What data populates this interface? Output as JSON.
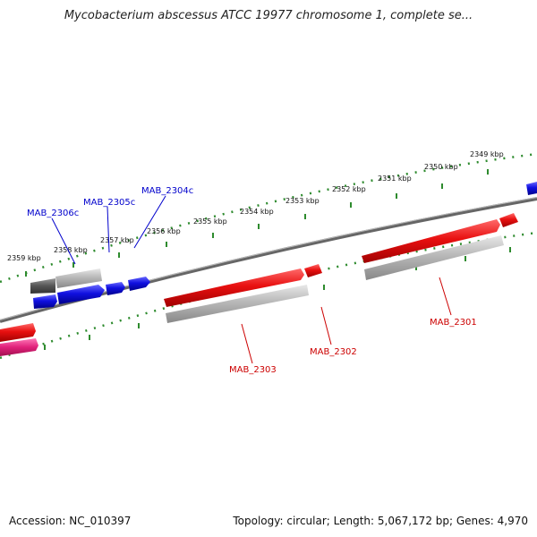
{
  "title": "Mycobacterium abscessus ATCC 19977 chromosome 1, complete se...",
  "footer": {
    "accession": "Accession: NC_010397",
    "genome_info": "Topology: circular; Length: 5,067,172 bp; Genes: 4,970"
  },
  "colors": {
    "ruler": "#2e8b2e",
    "backbone": "#808080",
    "forward_label": "#0000cc",
    "reverse_label": "#cc0000",
    "forward_gene": "#1010e0",
    "reverse_gene": "#e81010",
    "pseudo_gene": "#b0b0b0",
    "other_gene": "#e0207a"
  },
  "upper_scale": [
    "2359 kbp",
    "2358 kbp",
    "2357 kbp",
    "2356 kbp",
    "2355 kbp",
    "2354 kbp",
    "2353 kbp",
    "2352 kbp",
    "2351 kbp",
    "2350 kbp",
    "2349 kbp"
  ],
  "forward_genes": [
    "MAB_2306c",
    "MAB_2305c",
    "MAB_2304c"
  ],
  "reverse_genes": [
    "MAB_2303",
    "MAB_2302",
    "MAB_2301"
  ]
}
